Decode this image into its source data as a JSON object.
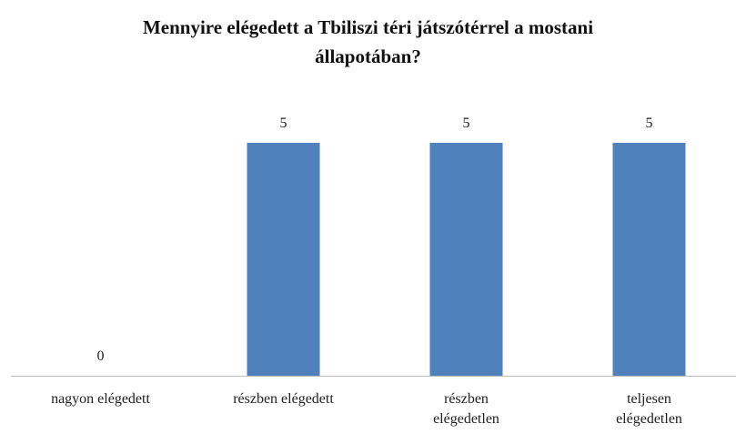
{
  "chart_data": {
    "type": "bar",
    "title": "Mennyire elégedett a Tbiliszi téri játszótérrel a mostani állapotában?",
    "categories": [
      "nagyon elégedett",
      "részben elégedett",
      "részben elégedetlen",
      "teljesen elégedetlen"
    ],
    "values": [
      0,
      5,
      5,
      5
    ],
    "color": "#4f81bd",
    "show_value_labels": true
  }
}
